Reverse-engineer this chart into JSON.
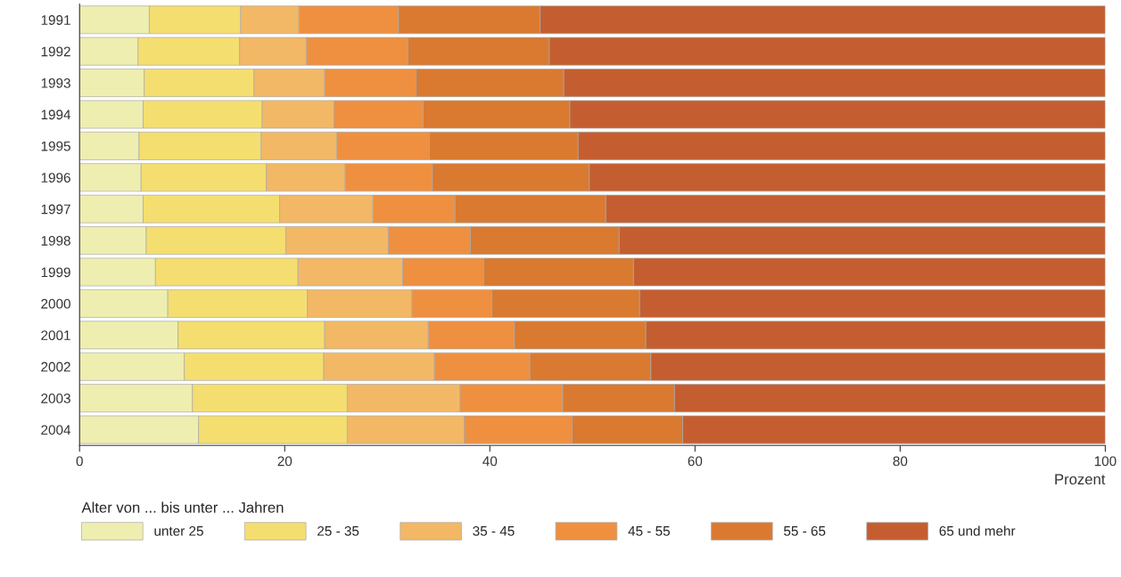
{
  "chart_data": {
    "type": "bar",
    "orientation": "horizontal",
    "stacked": true,
    "categories": [
      "1991",
      "1992",
      "1993",
      "1994",
      "1995",
      "1996",
      "1997",
      "1998",
      "1999",
      "2000",
      "2001",
      "2002",
      "2003",
      "2004"
    ],
    "series": [
      {
        "name": "unter 25",
        "color": "#eeeeb0",
        "values": [
          6.8,
          5.7,
          6.3,
          6.2,
          5.8,
          6.0,
          6.2,
          6.5,
          7.4,
          8.6,
          9.6,
          10.2,
          11.0,
          11.6
        ]
      },
      {
        "name": "25 - 35",
        "color": "#f5de70",
        "values": [
          8.9,
          9.9,
          10.7,
          11.6,
          11.9,
          12.2,
          13.3,
          13.6,
          13.9,
          13.6,
          14.3,
          13.6,
          15.1,
          14.5
        ]
      },
      {
        "name": "35 - 45",
        "color": "#f2b866",
        "values": [
          5.7,
          6.5,
          6.9,
          7.0,
          7.4,
          7.7,
          9.1,
          10.0,
          10.2,
          10.2,
          10.1,
          10.8,
          11.0,
          11.4
        ]
      },
      {
        "name": "45 - 55",
        "color": "#ee9040",
        "values": [
          9.7,
          9.9,
          8.9,
          8.7,
          9.0,
          8.5,
          8.0,
          8.0,
          7.9,
          7.8,
          8.4,
          9.3,
          10.0,
          10.5
        ]
      },
      {
        "name": "55 - 65",
        "color": "#d97a30",
        "values": [
          13.8,
          13.8,
          14.4,
          14.3,
          14.5,
          15.3,
          14.7,
          14.5,
          14.6,
          14.4,
          12.8,
          11.8,
          10.9,
          10.8
        ]
      },
      {
        "name": "65 und mehr",
        "color": "#c45e30",
        "values": [
          55.1,
          54.2,
          52.8,
          52.2,
          51.4,
          50.3,
          48.7,
          47.4,
          46.0,
          45.4,
          44.8,
          44.3,
          42.0,
          41.2
        ]
      }
    ],
    "xlabel": "Prozent",
    "legend_title": "Alter von ... bis unter ... Jahren",
    "xlim": [
      0,
      100
    ],
    "xticks": [
      0,
      20,
      40,
      60,
      80,
      100
    ],
    "grid": false,
    "legend": "bottom"
  }
}
